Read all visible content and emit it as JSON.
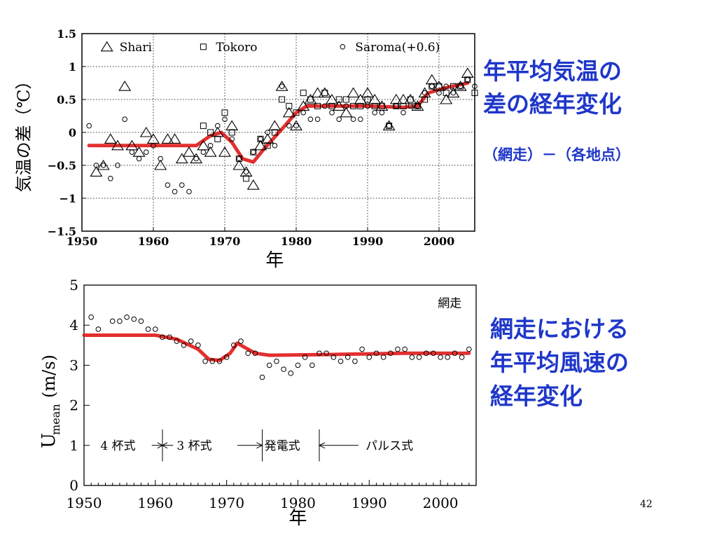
{
  "slide_number": "42",
  "captions": {
    "top": "年平均気温の\n差の経年変化",
    "top_sub": "（網走）－（各地点）",
    "bottom": "網走における\n年平均風速の\n経年変化"
  },
  "colors": {
    "caption": "#1f37c9",
    "trend": "#e01818"
  },
  "chart_data": [
    {
      "type": "scatter",
      "title": "",
      "xlabel": "年",
      "ylabel": "気温の差（℃）",
      "xlim": [
        1950,
        2005
      ],
      "ylim": [
        -1.5,
        1.5
      ],
      "xticks": [
        1950,
        1960,
        1970,
        1980,
        1990,
        2000
      ],
      "yticks": [
        -1.5,
        -1,
        -0.5,
        0,
        0.5,
        1,
        1.5
      ],
      "ytick_labels": [
        "−1.5",
        "−1",
        "−0.5",
        "0",
        "0.5",
        "1",
        "1.5"
      ],
      "grid": true,
      "legend_position": "top",
      "series": [
        {
          "name": "Shari",
          "marker": "triangle",
          "points": [
            [
              1952,
              -0.6
            ],
            [
              1953,
              -0.5
            ],
            [
              1954,
              -0.1
            ],
            [
              1955,
              -0.2
            ],
            [
              1956,
              0.7
            ],
            [
              1957,
              -0.2
            ],
            [
              1958,
              -0.3
            ],
            [
              1959,
              0.0
            ],
            [
              1960,
              -0.1
            ],
            [
              1961,
              -0.5
            ],
            [
              1962,
              -0.1
            ],
            [
              1963,
              -0.1
            ],
            [
              1964,
              -0.4
            ],
            [
              1965,
              -0.3
            ],
            [
              1966,
              -0.4
            ],
            [
              1967,
              -0.2
            ],
            [
              1968,
              -0.3
            ],
            [
              1969,
              0.0
            ],
            [
              1970,
              -0.3
            ],
            [
              1971,
              0.1
            ],
            [
              1972,
              -0.5
            ],
            [
              1973,
              -0.6
            ],
            [
              1974,
              -0.8
            ],
            [
              1975,
              -0.2
            ],
            [
              1976,
              -0.1
            ],
            [
              1977,
              0.1
            ],
            [
              1978,
              0.7
            ],
            [
              1979,
              0.3
            ],
            [
              1980,
              0.1
            ],
            [
              1981,
              0.4
            ],
            [
              1982,
              0.5
            ],
            [
              1983,
              0.6
            ],
            [
              1984,
              0.6
            ],
            [
              1985,
              0.5
            ],
            [
              1986,
              0.4
            ],
            [
              1987,
              0.3
            ],
            [
              1988,
              0.6
            ],
            [
              1989,
              0.5
            ],
            [
              1990,
              0.6
            ],
            [
              1991,
              0.5
            ],
            [
              1992,
              0.4
            ],
            [
              1993,
              0.1
            ],
            [
              1994,
              0.5
            ],
            [
              1995,
              0.5
            ],
            [
              1996,
              0.5
            ],
            [
              1997,
              0.4
            ],
            [
              1998,
              0.6
            ],
            [
              1999,
              0.8
            ],
            [
              2000,
              0.7
            ],
            [
              2001,
              0.5
            ],
            [
              2002,
              0.6
            ],
            [
              2003,
              0.7
            ],
            [
              2004,
              0.9
            ]
          ]
        },
        {
          "name": "Tokoro",
          "marker": "square",
          "points": [
            [
              1967,
              0.1
            ],
            [
              1968,
              0.0
            ],
            [
              1969,
              -0.1
            ],
            [
              1970,
              0.3
            ],
            [
              1971,
              0.0
            ],
            [
              1972,
              -0.4
            ],
            [
              1973,
              -0.7
            ],
            [
              1974,
              -0.3
            ],
            [
              1975,
              -0.1
            ],
            [
              1976,
              -0.2
            ],
            [
              1977,
              0.0
            ],
            [
              1978,
              0.5
            ],
            [
              1979,
              0.4
            ],
            [
              1980,
              0.3
            ],
            [
              1981,
              0.6
            ],
            [
              1982,
              0.5
            ],
            [
              1983,
              0.4
            ],
            [
              1984,
              0.6
            ],
            [
              1985,
              0.4
            ],
            [
              1986,
              0.5
            ],
            [
              1987,
              0.5
            ],
            [
              1988,
              0.4
            ],
            [
              1989,
              0.4
            ],
            [
              1990,
              0.5
            ],
            [
              1991,
              0.4
            ],
            [
              1992,
              0.4
            ],
            [
              1993,
              0.1
            ],
            [
              1994,
              0.4
            ],
            [
              1995,
              0.4
            ],
            [
              1996,
              0.5
            ],
            [
              1997,
              0.4
            ],
            [
              1998,
              0.5
            ],
            [
              1999,
              0.7
            ],
            [
              2000,
              0.7
            ],
            [
              2001,
              0.6
            ],
            [
              2002,
              0.7
            ],
            [
              2003,
              0.7
            ],
            [
              2004,
              0.8
            ],
            [
              2005,
              0.6
            ]
          ]
        },
        {
          "name": "Saroma(+0.6)",
          "marker": "circle",
          "points": [
            [
              1951,
              0.1
            ],
            [
              1952,
              -0.5
            ],
            [
              1953,
              -0.5
            ],
            [
              1954,
              -0.7
            ],
            [
              1955,
              -0.5
            ],
            [
              1956,
              0.2
            ],
            [
              1957,
              -0.3
            ],
            [
              1958,
              -0.4
            ],
            [
              1959,
              -0.3
            ],
            [
              1960,
              -0.2
            ],
            [
              1961,
              -0.4
            ],
            [
              1962,
              -0.8
            ],
            [
              1963,
              -0.9
            ],
            [
              1964,
              -0.8
            ],
            [
              1965,
              -0.9
            ],
            [
              1966,
              -0.4
            ],
            [
              1967,
              -0.3
            ],
            [
              1968,
              -0.2
            ],
            [
              1969,
              0.1
            ],
            [
              1970,
              0.2
            ],
            [
              1971,
              -0.1
            ],
            [
              1972,
              -0.4
            ],
            [
              1973,
              -0.6
            ],
            [
              1974,
              -0.3
            ],
            [
              1975,
              -0.1
            ],
            [
              1976,
              0.0
            ],
            [
              1977,
              -0.2
            ],
            [
              1978,
              0.7
            ],
            [
              1979,
              0.1
            ],
            [
              1980,
              0.1
            ],
            [
              1981,
              0.3
            ],
            [
              1982,
              0.2
            ],
            [
              1983,
              0.2
            ],
            [
              1984,
              0.4
            ],
            [
              1985,
              0.3
            ],
            [
              1986,
              0.2
            ],
            [
              1987,
              0.4
            ],
            [
              1988,
              0.2
            ],
            [
              1989,
              0.2
            ],
            [
              1990,
              0.4
            ],
            [
              1991,
              0.3
            ],
            [
              1992,
              0.3
            ],
            [
              1993,
              0.1
            ],
            [
              1994,
              0.4
            ],
            [
              1995,
              0.3
            ],
            [
              1996,
              0.4
            ],
            [
              1997,
              0.4
            ],
            [
              1998,
              0.6
            ],
            [
              1999,
              0.7
            ],
            [
              2000,
              0.6
            ],
            [
              2001,
              0.7
            ],
            [
              2002,
              0.6
            ],
            [
              2003,
              0.7
            ],
            [
              2004,
              0.8
            ],
            [
              2005,
              0.7
            ]
          ]
        },
        {
          "name": "",
          "type": "line",
          "color": "#e01818",
          "points": [
            [
              1951,
              -0.2
            ],
            [
              1966,
              -0.2
            ],
            [
              1968,
              -0.05
            ],
            [
              1969.5,
              0.0
            ],
            [
              1971,
              -0.15
            ],
            [
              1972.5,
              -0.4
            ],
            [
              1974,
              -0.45
            ],
            [
              1975.5,
              -0.25
            ],
            [
              1978,
              0.05
            ],
            [
              1980,
              0.3
            ],
            [
              1981.5,
              0.4
            ],
            [
              1985,
              0.4
            ],
            [
              1990,
              0.4
            ],
            [
              1995,
              0.38
            ],
            [
              1997,
              0.4
            ],
            [
              1998.5,
              0.6
            ],
            [
              2001,
              0.68
            ],
            [
              2004,
              0.75
            ]
          ]
        }
      ]
    },
    {
      "type": "scatter",
      "title": "",
      "annotation_label": "網走",
      "xlabel": "年",
      "ylabel": "U",
      "ylabel_sub": "mean",
      "ylabel_unit": "(m/s)",
      "xlim": [
        1950,
        2005
      ],
      "ylim": [
        0,
        5
      ],
      "xticks": [
        1950,
        1960,
        1970,
        1980,
        1990,
        2000
      ],
      "yticks": [
        0,
        1,
        2,
        3,
        4,
        5
      ],
      "instrument_periods": [
        {
          "label": "4 杯式",
          "start": 1950,
          "end": 1961
        },
        {
          "label": "3 杯式",
          "start": 1961,
          "end": 1975
        },
        {
          "label": "発電式",
          "start": 1975,
          "end": 1983
        },
        {
          "label": "パルス式",
          "start": 1983,
          "end": 2005
        }
      ],
      "period_markers": [
        1961,
        1975,
        1983
      ],
      "series": [
        {
          "name": "",
          "marker": "circle",
          "points": [
            [
              1951,
              4.2
            ],
            [
              1952,
              3.9
            ],
            [
              1954,
              4.1
            ],
            [
              1955,
              4.1
            ],
            [
              1956,
              4.2
            ],
            [
              1957,
              4.15
            ],
            [
              1958,
              4.1
            ],
            [
              1959,
              3.9
            ],
            [
              1960,
              3.9
            ],
            [
              1961,
              3.7
            ],
            [
              1962,
              3.7
            ],
            [
              1963,
              3.6
            ],
            [
              1964,
              3.5
            ],
            [
              1965,
              3.6
            ],
            [
              1966,
              3.5
            ],
            [
              1967,
              3.1
            ],
            [
              1968,
              3.1
            ],
            [
              1969,
              3.1
            ],
            [
              1970,
              3.2
            ],
            [
              1971,
              3.5
            ],
            [
              1972,
              3.6
            ],
            [
              1973,
              3.3
            ],
            [
              1974,
              3.3
            ],
            [
              1975,
              2.7
            ],
            [
              1976,
              3.0
            ],
            [
              1977,
              3.1
            ],
            [
              1978,
              2.9
            ],
            [
              1979,
              2.8
            ],
            [
              1980,
              3.0
            ],
            [
              1981,
              3.2
            ],
            [
              1982,
              3.0
            ],
            [
              1983,
              3.3
            ],
            [
              1984,
              3.3
            ],
            [
              1985,
              3.2
            ],
            [
              1986,
              3.1
            ],
            [
              1987,
              3.2
            ],
            [
              1988,
              3.1
            ],
            [
              1989,
              3.4
            ],
            [
              1990,
              3.2
            ],
            [
              1991,
              3.3
            ],
            [
              1992,
              3.2
            ],
            [
              1993,
              3.3
            ],
            [
              1994,
              3.4
            ],
            [
              1995,
              3.4
            ],
            [
              1996,
              3.2
            ],
            [
              1997,
              3.2
            ],
            [
              1998,
              3.3
            ],
            [
              1999,
              3.3
            ],
            [
              2000,
              3.2
            ],
            [
              2001,
              3.2
            ],
            [
              2002,
              3.3
            ],
            [
              2003,
              3.2
            ],
            [
              2004,
              3.4
            ]
          ]
        },
        {
          "name": "",
          "type": "line",
          "color": "#e01818",
          "points": [
            [
              1950,
              3.75
            ],
            [
              1960,
              3.75
            ],
            [
              1963,
              3.65
            ],
            [
              1966,
              3.4
            ],
            [
              1967.5,
              3.15
            ],
            [
              1969,
              3.12
            ],
            [
              1970.5,
              3.3
            ],
            [
              1971.5,
              3.55
            ],
            [
              1972.5,
              3.45
            ],
            [
              1974,
              3.3
            ],
            [
              1976,
              3.25
            ],
            [
              1985,
              3.27
            ],
            [
              1995,
              3.3
            ],
            [
              2004,
              3.3
            ]
          ]
        }
      ]
    }
  ]
}
